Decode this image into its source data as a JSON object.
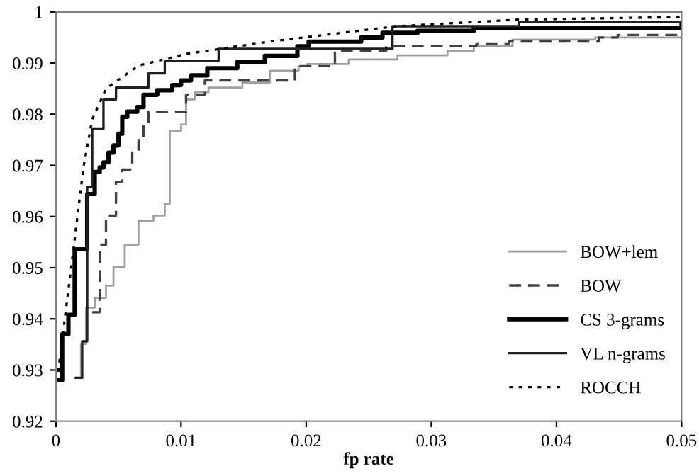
{
  "chart_data": {
    "type": "step",
    "xlabel": "fp rate",
    "xlim": [
      0,
      0.05
    ],
    "ylim": [
      0.92,
      1
    ],
    "xticks": [
      0,
      0.01,
      0.02,
      0.03,
      0.04,
      0.05
    ],
    "yticks": [
      0.92,
      0.93,
      0.94,
      0.95,
      0.96,
      0.97,
      0.98,
      0.99,
      {
        "value": 1,
        "label": "1"
      }
    ],
    "grid": false,
    "legend": "bottom right",
    "series": [
      {
        "name": "BOW+lem",
        "color": "#a0a0a0",
        "line_style": "solid",
        "x": [
          0.0015,
          0.002,
          0.0024,
          0.0031,
          0.004,
          0.0046,
          0.0055,
          0.0066,
          0.0078,
          0.0087,
          0.0091,
          0.01,
          0.0104,
          0.0111,
          0.0122,
          0.0149,
          0.0171,
          0.0194,
          0.0201,
          0.0234,
          0.0273,
          0.0313,
          0.0334,
          0.0365,
          0.0431,
          0.05
        ],
        "values": [
          0.9285,
          0.9351,
          0.9422,
          0.9441,
          0.9465,
          0.9502,
          0.9545,
          0.9592,
          0.9602,
          0.9625,
          0.9767,
          0.978,
          0.9829,
          0.9843,
          0.9852,
          0.9862,
          0.9885,
          0.9894,
          0.9898,
          0.9907,
          0.9915,
          0.9924,
          0.9933,
          0.9946,
          0.995,
          0.9955
        ]
      },
      {
        "name": "BOW",
        "color": "#404040",
        "line_style": "dashed",
        "x": [
          0.0029,
          0.0035,
          0.004,
          0.0048,
          0.0053,
          0.0061,
          0.0066,
          0.007,
          0.0074,
          0.0104,
          0.0119,
          0.0191,
          0.0223,
          0.0264,
          0.0336,
          0.0362,
          0.0434,
          0.0449,
          0.05
        ],
        "values": [
          0.9413,
          0.9545,
          0.9602,
          0.9668,
          0.9692,
          0.9725,
          0.9753,
          0.9781,
          0.9805,
          0.9838,
          0.9866,
          0.9894,
          0.9924,
          0.9933,
          0.9937,
          0.9942,
          0.995,
          0.9955,
          0.9959
        ]
      },
      {
        "name": "CS 3-grams",
        "color": "#000000",
        "line_style": "solid",
        "x": [
          0,
          0.0005,
          0.001,
          0.0015,
          0.0025,
          0.0031,
          0.0035,
          0.0038,
          0.0042,
          0.0046,
          0.005,
          0.0053,
          0.0057,
          0.0065,
          0.007,
          0.0081,
          0.0093,
          0.01,
          0.0108,
          0.0121,
          0.0145,
          0.0167,
          0.0193,
          0.0202,
          0.0244,
          0.0261,
          0.0289,
          0.0334,
          0.05
        ],
        "values": [
          0.928,
          0.937,
          0.9408,
          0.9536,
          0.9644,
          0.9687,
          0.9696,
          0.9706,
          0.9725,
          0.9739,
          0.9762,
          0.9795,
          0.9805,
          0.9814,
          0.9838,
          0.9847,
          0.9857,
          0.9866,
          0.9876,
          0.989,
          0.9902,
          0.9914,
          0.9933,
          0.9942,
          0.995,
          0.9959,
          0.9963,
          0.9968,
          0.9976
        ]
      },
      {
        "name": "VL n-grams",
        "color": "#202020",
        "line_style": "solid",
        "x": [
          0.0016,
          0.0021,
          0.0025,
          0.0029,
          0.0038,
          0.0048,
          0.0074,
          0.0087,
          0.013,
          0.0269,
          0.037,
          0.05
        ],
        "values": [
          0.9285,
          0.9356,
          0.9658,
          0.9772,
          0.9829,
          0.9852,
          0.988,
          0.9904,
          0.9928,
          0.9972,
          0.998,
          0.998
        ]
      },
      {
        "name": "ROCCH",
        "color": "#000000",
        "type": "line",
        "line_style": "dotted",
        "x": [
          0,
          0.0014,
          0.0022,
          0.0029,
          0.004,
          0.0066,
          0.0104,
          0.0171,
          0.0272,
          0.037,
          0.05
        ],
        "values": [
          0.926,
          0.9536,
          0.9696,
          0.979,
          0.985,
          0.9895,
          0.9918,
          0.9942,
          0.9972,
          0.9985,
          0.999
        ]
      }
    ]
  }
}
